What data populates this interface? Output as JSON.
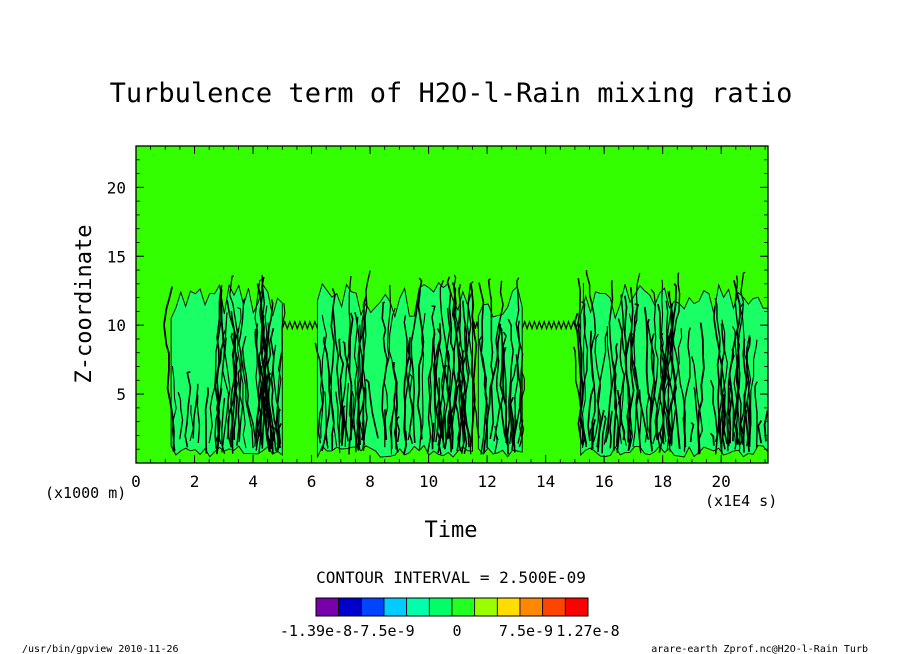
{
  "chart_data": {
    "type": "heatmap",
    "title": "Turbulence term of H2O-l-Rain mixing ratio",
    "xlabel": "Time",
    "ylabel": "Z-coordinate",
    "x_unit_note": "(x1E4 s)",
    "y_unit_note": "(x1000 m)",
    "xlim": [
      0,
      21.6
    ],
    "ylim": [
      0,
      23
    ],
    "x_ticks": [
      0,
      2,
      4,
      6,
      8,
      10,
      12,
      14,
      16,
      18,
      20
    ],
    "y_ticks": [
      5,
      10,
      15,
      20
    ],
    "x_tick_labels": [
      "0",
      "2",
      "4",
      "6",
      "8",
      "10",
      "12",
      "14",
      "16",
      "18",
      "20"
    ],
    "y_tick_labels": [
      "5",
      "10",
      "15",
      "20"
    ],
    "contour_interval_text": "CONTOUR INTERVAL = 2.500E-09",
    "background_color": "#33ff00",
    "turbulent_fill_color": "#1aff66",
    "line_color": "#000000",
    "turbulent_layer": {
      "active_periods": [
        [
          1.2,
          5.0
        ],
        [
          6.2,
          11.5
        ],
        [
          11.7,
          13.2
        ],
        [
          15.2,
          21.6
        ]
      ],
      "top_height": 12.0,
      "inversion_height": 10.0
    },
    "colorbar": {
      "colors": [
        "#7700aa",
        "#0000cc",
        "#0044ff",
        "#00ccff",
        "#00ffaa",
        "#00ff66",
        "#22ff22",
        "#99ff00",
        "#ffdd00",
        "#ff8800",
        "#ff4400",
        "#ff0000"
      ],
      "labels": [
        "-1.39e-8",
        "-7.5e-9",
        "0",
        "7.5e-9",
        "1.27e-8"
      ]
    },
    "footer_left": "/usr/bin/gpview   2010-11-26",
    "footer_right": "arare-earth_Zprof.nc@H2O-l-Rain_Turb"
  }
}
